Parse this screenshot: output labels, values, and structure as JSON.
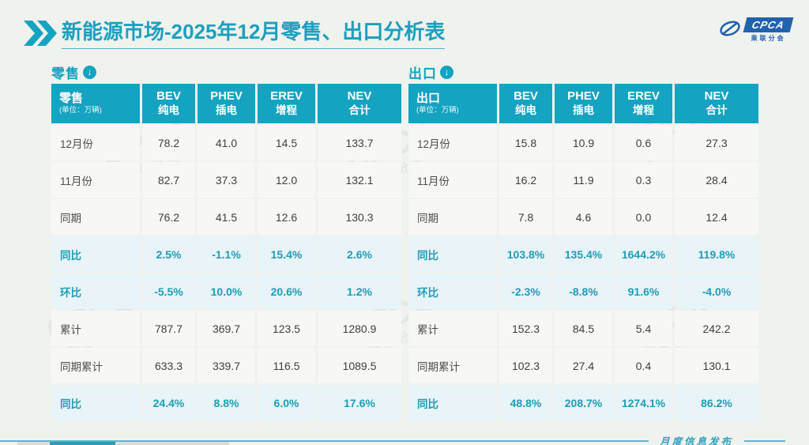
{
  "header": {
    "title_bold": "新能源市场",
    "title_rest": "-2025年12月零售、出口分析表"
  },
  "logo": {
    "acronym": "CPCA",
    "subtitle": "乘联分会"
  },
  "footer": {
    "label": "月度信息发布"
  },
  "colors": {
    "teal": "#14A3C0",
    "teal_text": "#1E9CB9",
    "highlight_bg": "#E8F4F7",
    "row_bg": "#F7F8F5",
    "page_bg": "#F0F2EE",
    "logo_blue": "#2062AE"
  },
  "tables": [
    {
      "section_label": "零售",
      "corner_label": "零售",
      "unit": "(单位：万辆)",
      "columns": [
        {
          "en": "BEV",
          "zh": "纯电"
        },
        {
          "en": "PHEV",
          "zh": "插电"
        },
        {
          "en": "EREV",
          "zh": "增程"
        },
        {
          "en": "NEV",
          "zh": "合计"
        }
      ],
      "rows": [
        {
          "label": "12月份",
          "values": [
            "78.2",
            "41.0",
            "14.5",
            "133.7"
          ],
          "highlight": false
        },
        {
          "label": "11月份",
          "values": [
            "82.7",
            "37.3",
            "12.0",
            "132.1"
          ],
          "highlight": false
        },
        {
          "label": "同期",
          "values": [
            "76.2",
            "41.5",
            "12.6",
            "130.3"
          ],
          "highlight": false
        },
        {
          "label": "同比",
          "values": [
            "2.5%",
            "-1.1%",
            "15.4%",
            "2.6%"
          ],
          "highlight": true
        },
        {
          "label": "环比",
          "values": [
            "-5.5%",
            "10.0%",
            "20.6%",
            "1.2%"
          ],
          "highlight": true
        },
        {
          "label": "累计",
          "values": [
            "787.7",
            "369.7",
            "123.5",
            "1280.9"
          ],
          "highlight": false
        },
        {
          "label": "同期累计",
          "values": [
            "633.3",
            "339.7",
            "116.5",
            "1089.5"
          ],
          "highlight": false
        },
        {
          "label": "同比",
          "values": [
            "24.4%",
            "8.8%",
            "6.0%",
            "17.6%"
          ],
          "highlight": true
        }
      ]
    },
    {
      "section_label": "出口",
      "corner_label": "出口",
      "unit": "(单位：万辆)",
      "columns": [
        {
          "en": "BEV",
          "zh": "纯电"
        },
        {
          "en": "PHEV",
          "zh": "插电"
        },
        {
          "en": "EREV",
          "zh": "增程"
        },
        {
          "en": "NEV",
          "zh": "合计"
        }
      ],
      "rows": [
        {
          "label": "12月份",
          "values": [
            "15.8",
            "10.9",
            "0.6",
            "27.3"
          ],
          "highlight": false
        },
        {
          "label": "11月份",
          "values": [
            "16.2",
            "11.9",
            "0.3",
            "28.4"
          ],
          "highlight": false
        },
        {
          "label": "同期",
          "values": [
            "7.8",
            "4.6",
            "0.0",
            "12.4"
          ],
          "highlight": false
        },
        {
          "label": "同比",
          "values": [
            "103.8%",
            "135.4%",
            "1644.2%",
            "119.8%"
          ],
          "highlight": true
        },
        {
          "label": "环比",
          "values": [
            "-2.3%",
            "-8.8%",
            "91.6%",
            "-4.0%"
          ],
          "highlight": true
        },
        {
          "label": "累计",
          "values": [
            "152.3",
            "84.5",
            "5.4",
            "242.2"
          ],
          "highlight": false
        },
        {
          "label": "同期累计",
          "values": [
            "102.3",
            "27.4",
            "0.4",
            "130.1"
          ],
          "highlight": false
        },
        {
          "label": "同比",
          "values": [
            "48.8%",
            "208.7%",
            "1274.1%",
            "86.2%"
          ],
          "highlight": true
        }
      ]
    }
  ]
}
